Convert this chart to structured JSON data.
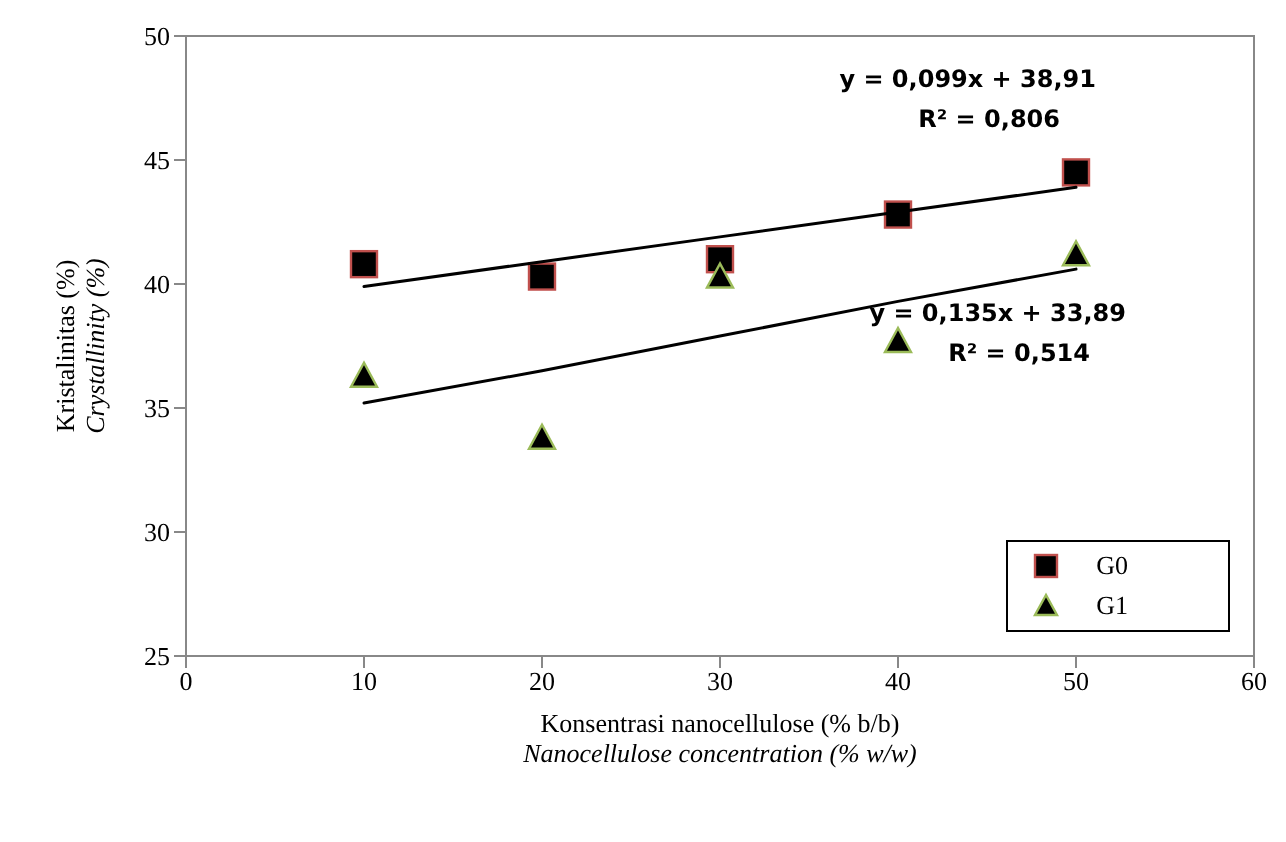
{
  "chart_data": {
    "type": "scatter",
    "ylabel": "Kristalinitas (%)\nCrystallinity (%)",
    "xlabel": "Konsentrasi nanocellulose (% b/b)\nNanocellulose concentration (% w/w)",
    "x": [
      10,
      20,
      30,
      40,
      50
    ],
    "series": [
      {
        "name": "G0",
        "color": "#c0504d",
        "marker": "square",
        "values": [
          40.8,
          40.3,
          41.0,
          42.8,
          44.5
        ]
      },
      {
        "name": "G1",
        "color": "#9bbb59",
        "marker": "triangle",
        "values": [
          36.3,
          33.8,
          40.3,
          37.7,
          41.2
        ]
      },
      {
        "type": "line",
        "color": "#000000",
        "marker": "none",
        "values": [
          39.9,
          40.9,
          41.9,
          42.9,
          43.9
        ]
      },
      {
        "type": "line",
        "color": "#000000",
        "marker": "none",
        "values": [
          35.2,
          36.5,
          37.9,
          39.3,
          40.6
        ]
      }
    ],
    "annotations": [
      "y = 0,099x + 38,91\nR² = 0,806",
      "y = 0,135x + 33,89\nR² = 0,514"
    ],
    "xlim": [
      0,
      60
    ],
    "xticks": [
      0,
      10,
      20,
      30,
      40,
      50,
      60
    ],
    "ylim": [
      25,
      50
    ],
    "yticks": [
      25,
      30,
      35,
      40,
      45,
      50
    ],
    "grid": false,
    "legend": "bottom right"
  }
}
